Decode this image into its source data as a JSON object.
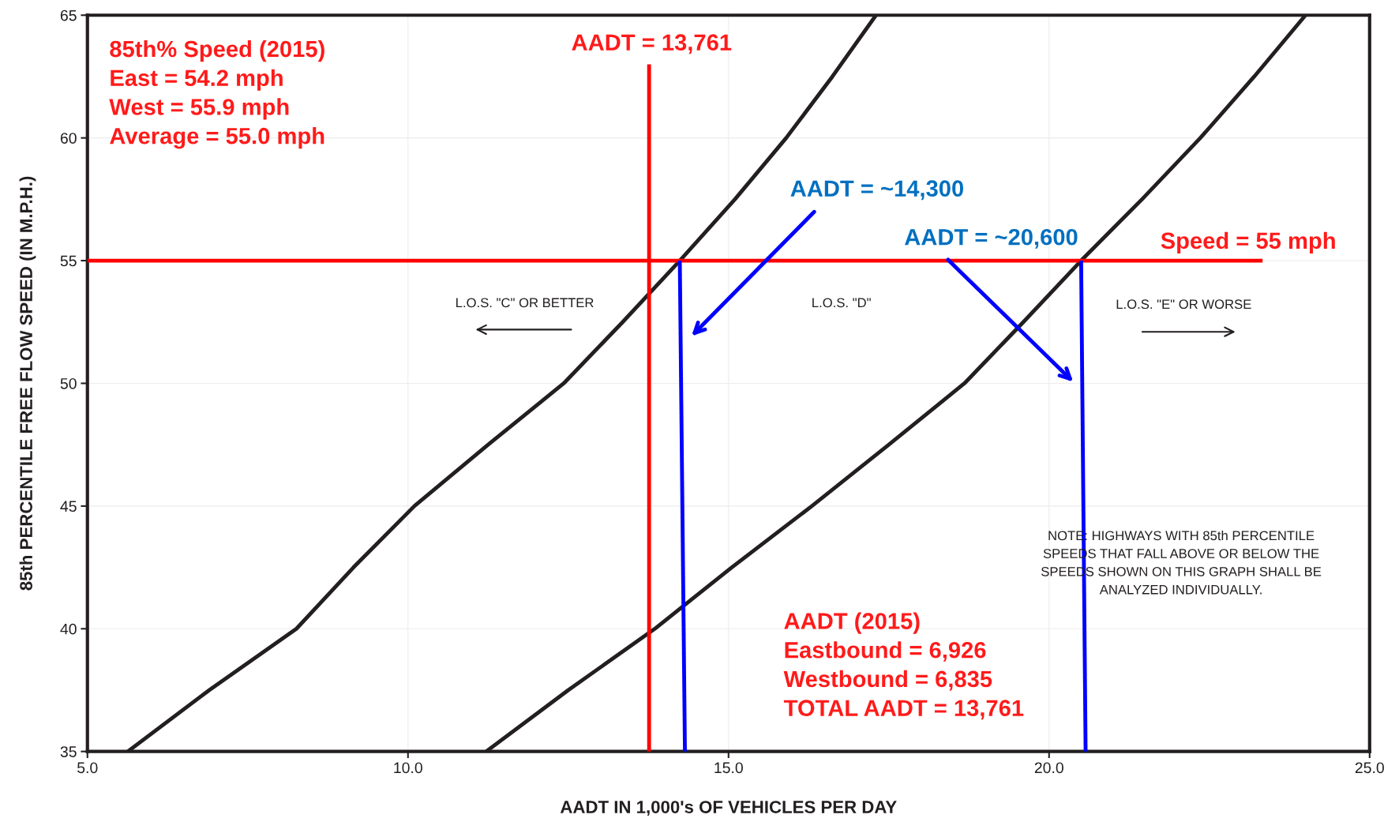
{
  "chart_data": {
    "type": "line",
    "xlabel": "AADT IN 1,000's OF VEHICLES PER DAY",
    "ylabel": "85th PERCENTILE FREE FLOW SPEED (IN M.P.H.)",
    "xlim": [
      5,
      25
    ],
    "ylim": [
      35,
      65
    ],
    "xticks": [
      {
        "value": 5,
        "label": "5.0"
      },
      {
        "value": 10,
        "label": "10.0"
      },
      {
        "value": 15,
        "label": "15.0"
      },
      {
        "value": 20,
        "label": "20.0"
      },
      {
        "value": 25,
        "label": "25.0"
      }
    ],
    "yticks": [
      35,
      40,
      45,
      50,
      55,
      60,
      65
    ],
    "grid": true,
    "marker": "none",
    "line_style": "solid",
    "series": [
      {
        "color": "#231f20",
        "x": [
          5.63,
          6.9,
          8.26,
          9.15,
          10.1,
          11.25,
          12.43,
          13.35,
          14.24,
          15.1,
          15.9,
          16.62,
          17.3
        ],
        "values": [
          35,
          37.5,
          40,
          42.5,
          45,
          47.5,
          50,
          52.5,
          55,
          57.5,
          60,
          62.5,
          65
        ]
      },
      {
        "color": "#231f20",
        "x": [
          11.22,
          12.5,
          13.85,
          15.05,
          16.3,
          17.5,
          18.68,
          19.6,
          20.5,
          21.45,
          22.36,
          23.2,
          24.0
        ],
        "values": [
          35,
          37.5,
          40,
          42.5,
          45,
          47.5,
          50,
          52.5,
          55,
          57.5,
          60,
          62.5,
          65
        ]
      },
      {
        "color": "#ff0000",
        "x": [
          13.761,
          13.761
        ],
        "values": [
          35,
          63
        ]
      },
      {
        "color": "#ff0000",
        "x": [
          5,
          23.33
        ],
        "values": [
          55,
          55
        ]
      },
      {
        "color": "#0000ff",
        "x": [
          14.24,
          14.32
        ],
        "values": [
          55,
          35
        ]
      },
      {
        "color": "#0000ff",
        "x": [
          20.5,
          20.57
        ],
        "values": [
          55,
          35
        ]
      }
    ],
    "annotations": [
      "85th% Speed (2015)\nEast = 54.2 mph\nWest = 55.9 mph\nAverage = 55.0 mph",
      "AADT = 13,761",
      "AADT = ~14,300",
      "AADT = ~20,600",
      "Speed = 55 mph",
      "L.O.S. \"C\" OR BETTER",
      "L.O.S. \"D\"",
      "L.O.S. \"E\" OR WORSE",
      "NOTE: HIGHWAYS WITH 85th PERCENTILE\nSPEEDS THAT FALL ABOVE OR BELOW THE\nSPEEDS SHOWN ON THIS GRAPH SHALL BE\nANALYZED INDIVIDUALLY.",
      "AADT (2015)\nEastbound = 6,926\nWestbound = 6,835\nTOTAL AADT = 13,761"
    ]
  }
}
